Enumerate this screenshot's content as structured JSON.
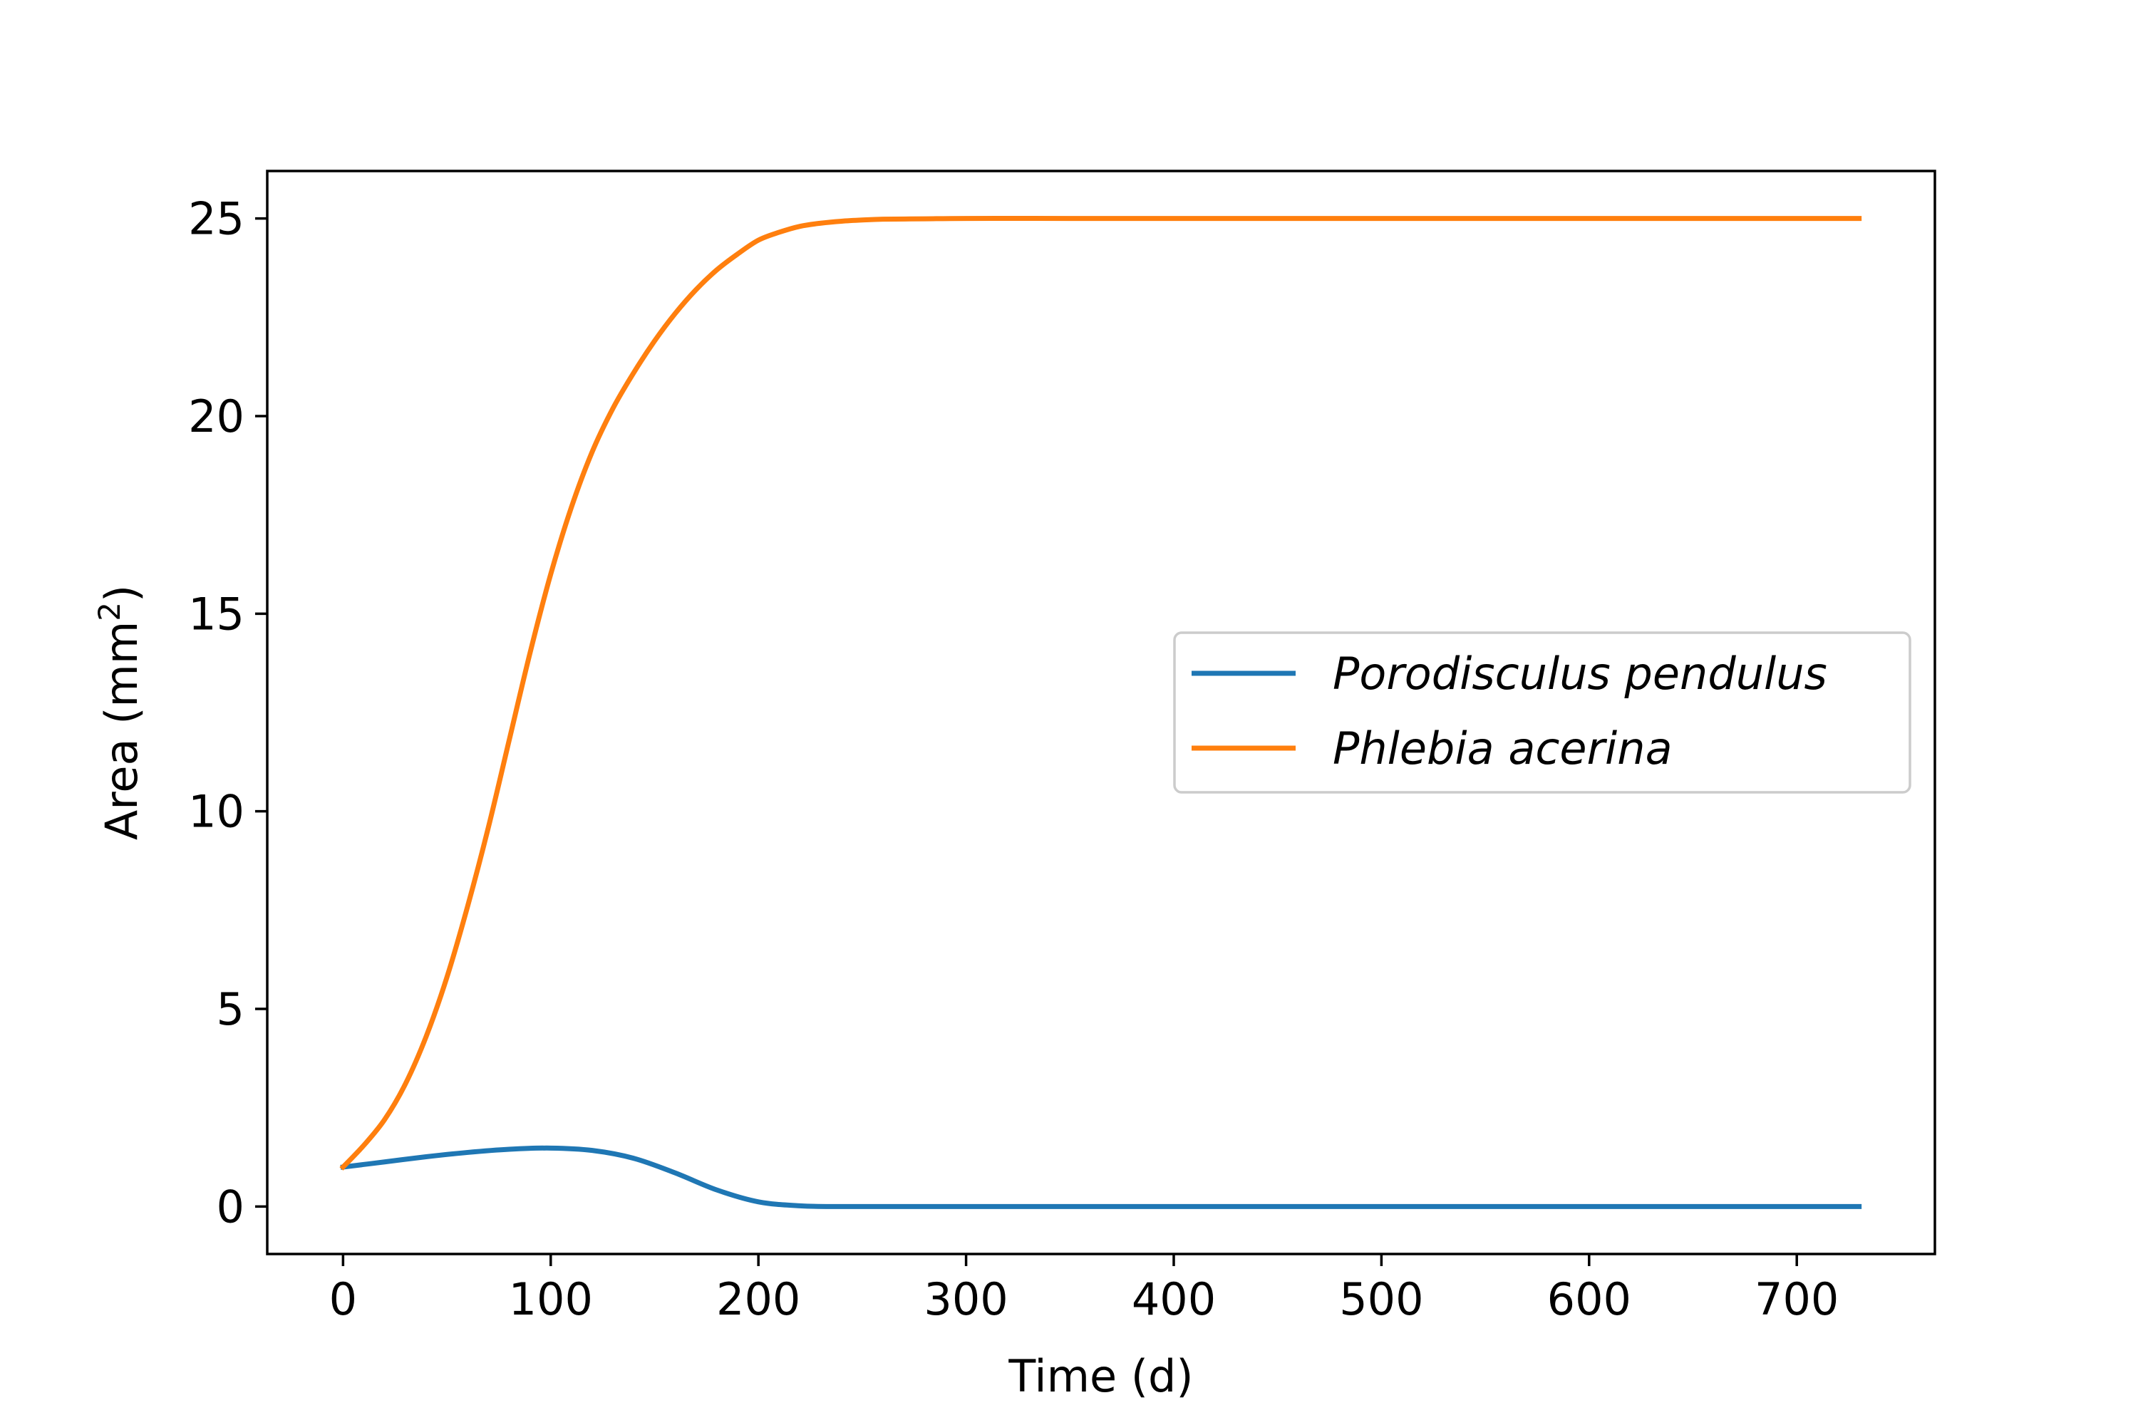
{
  "chart_data": {
    "type": "line",
    "xlabel": "Time (d)",
    "ylabel_main": "Area (mm",
    "ylabel_sup": "2",
    "ylabel_end": ")",
    "xlim": [
      -36.5,
      766.5
    ],
    "ylim": [
      -1.2,
      26.2
    ],
    "xticks": [
      0,
      100,
      200,
      300,
      400,
      500,
      600,
      700
    ],
    "yticks": [
      0,
      5,
      10,
      15,
      20,
      25
    ],
    "grid": false,
    "legend_position": "center-right",
    "series": [
      {
        "name": "Porodisculus pendulus",
        "color": "#1f77b4",
        "x": [
          0,
          20,
          40,
          60,
          80,
          100,
          120,
          140,
          160,
          180,
          200,
          220,
          240,
          300,
          400,
          500,
          600,
          730
        ],
        "y": [
          1.0,
          1.13,
          1.26,
          1.37,
          1.45,
          1.48,
          1.42,
          1.22,
          0.85,
          0.42,
          0.12,
          0.02,
          0.0,
          0.0,
          0.0,
          0.0,
          0.0,
          0.0
        ]
      },
      {
        "name": "Phlebia acerina",
        "color": "#ff7f0e",
        "x": [
          0,
          10,
          20,
          30,
          40,
          50,
          60,
          70,
          80,
          90,
          100,
          110,
          120,
          130,
          140,
          150,
          160,
          170,
          180,
          190,
          200,
          210,
          220,
          230,
          240,
          250,
          260,
          280,
          300,
          350,
          400,
          500,
          600,
          730
        ],
        "y": [
          1.0,
          1.55,
          2.2,
          3.1,
          4.3,
          5.8,
          7.6,
          9.6,
          11.8,
          14.0,
          16.0,
          17.7,
          19.1,
          20.2,
          21.1,
          21.9,
          22.6,
          23.2,
          23.7,
          24.1,
          24.45,
          24.65,
          24.8,
          24.88,
          24.93,
          24.96,
          24.98,
          24.99,
          25.0,
          25.0,
          25.0,
          25.0,
          25.0,
          25.0
        ]
      }
    ]
  }
}
